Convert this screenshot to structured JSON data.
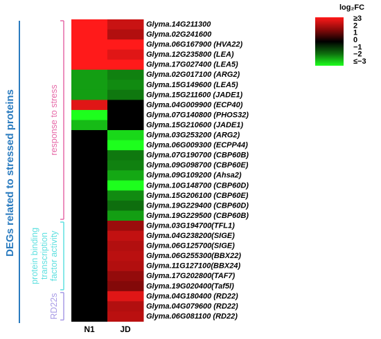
{
  "chart_data": {
    "type": "heatmap",
    "columns": [
      "N1",
      "JD"
    ],
    "rows": [
      "Glyma.14G211300",
      "Glyma.02G241600",
      "Glyma.06G167900 (HVA22)",
      "Glyma.12G235800 (LEA)",
      "Glyma.17G027400 (LEA5)",
      "Glyma.02G017100 (ARG2)",
      "Glyma.15G149600 (LEA5)",
      "Glyma.15G211600 (JADE1)",
      "Glyma.04G009900 (ECP40)",
      "Glyma.07G140800 (PHOS32)",
      "Glyma.15G210600 (JADE1)",
      "Glyma.03G253200 (ARG2)",
      "Glyma.06G009300 (ECPP44)",
      "Glyma.07G190700 (CBP60B)",
      "Glyma.09G098700 (CBP60E)",
      "Glyma.09G109200 (Ahsa2)",
      "Glyma.10G148700 (CBP60D)",
      "Glyma.15G206100 (CBP60E)",
      "Glyma.19G229400 (CBP60D)",
      "Glyma.19G229500 (CBP60B)",
      "Glyma.03G194700(TFL1)",
      "Glyma.04G238200(SIGE)",
      "Glyma.06G125700(SIGE)",
      "Glyma.06G255300(BBX22)",
      "Glyma.11G127100(BBX24)",
      "Glyma.17G202800(TAF7)",
      "Glyma.19G020400(Taf5l)",
      "Glyma.04G180400 (RD22)",
      "Glyma.04G079600 (RD22)",
      "Glyma.06G081100 (RD22)"
    ],
    "values": [
      [
        3,
        2.3
      ],
      [
        3,
        2.0
      ],
      [
        3,
        3
      ],
      [
        3,
        2.6
      ],
      [
        3,
        3
      ],
      [
        -2,
        -1.7
      ],
      [
        -2,
        -1.8
      ],
      [
        -2,
        -1.6
      ],
      [
        2.6,
        0
      ],
      [
        -3,
        0
      ],
      [
        -2.3,
        0
      ],
      [
        0,
        -2.6
      ],
      [
        0,
        -3
      ],
      [
        0,
        -1.6
      ],
      [
        0,
        -1.7
      ],
      [
        0,
        -2.1
      ],
      [
        0,
        -3
      ],
      [
        0,
        -1.8
      ],
      [
        0,
        -1.5
      ],
      [
        0,
        -2.0
      ],
      [
        0,
        1.7
      ],
      [
        0,
        2.2
      ],
      [
        0,
        2.0
      ],
      [
        0,
        2.1
      ],
      [
        0,
        2.0
      ],
      [
        0,
        1.6
      ],
      [
        0,
        1.4
      ],
      [
        0,
        2.6
      ],
      [
        0,
        2.0
      ],
      [
        0,
        2.1
      ]
    ],
    "colorbar": {
      "title": "log₂FC",
      "ticks": [
        "≥3",
        "2",
        "1",
        "0",
        "−1",
        "−2",
        "≤−3"
      ],
      "range": [
        -3,
        3
      ],
      "colors": {
        "positive_max": "#ff1a1a",
        "positive_mid": "#8c0a0a",
        "zero": "#000000",
        "negative_mid": "#0e6e0e",
        "negative_max": "#1dff1d"
      }
    },
    "groups": [
      {
        "label": "response to stress",
        "color": "#e66aa8",
        "rows": [
          0,
          19
        ]
      },
      {
        "label": "protein binding transcription factor activity",
        "color": "#5fe0e0",
        "rows": [
          20,
          26
        ]
      },
      {
        "label": "RD22s",
        "color": "#a89be6",
        "rows": [
          27,
          29
        ]
      }
    ],
    "left_label": {
      "text": "DEGs related to stressed proteins",
      "color": "#2a7bbf"
    }
  }
}
